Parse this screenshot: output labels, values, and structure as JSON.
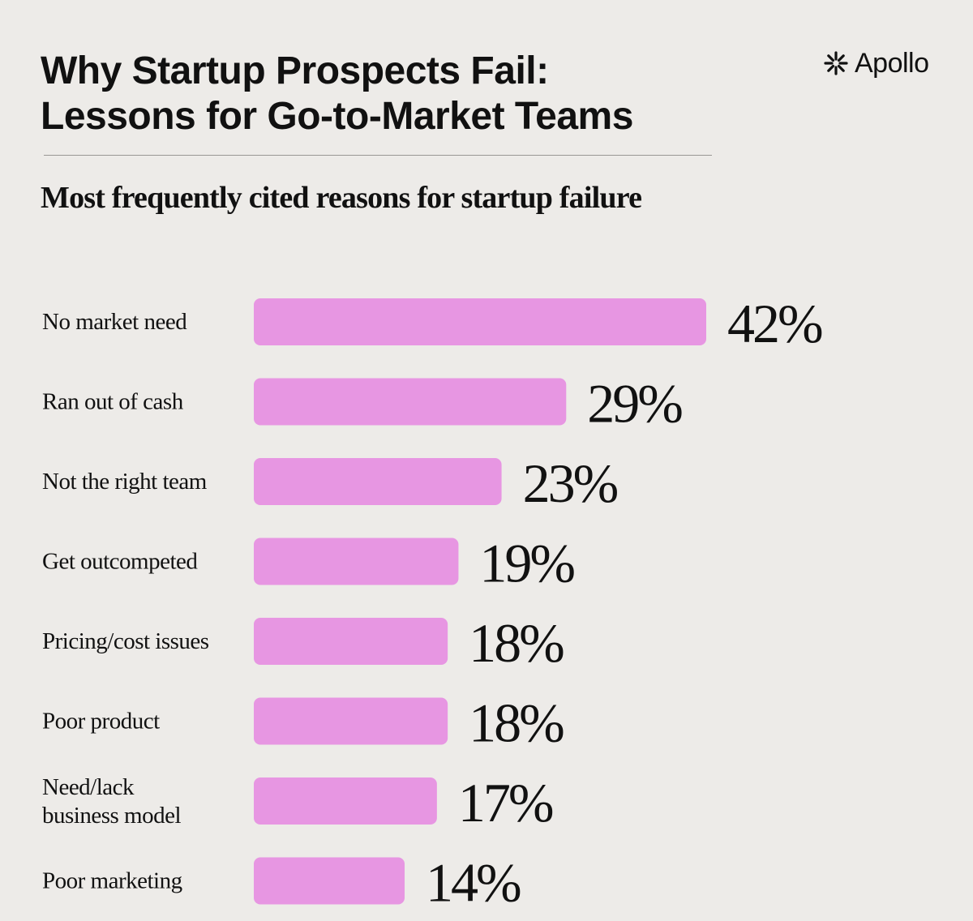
{
  "header": {
    "title_line1": "Why Startup Prospects Fail:",
    "title_line2": "Lessons for Go-to-Market Teams",
    "brand": "Apollo",
    "brand_icon": "asterisk-icon"
  },
  "chart_data": {
    "type": "bar",
    "orientation": "horizontal",
    "title": "Most frequently cited reasons for startup failure",
    "categories": [
      "No market need",
      "Ran out of cash",
      "Not the right team",
      "Get outcompeted",
      "Pricing/cost issues",
      "Poor product",
      "Need/lack business model",
      "Poor marketing"
    ],
    "values": [
      42,
      29,
      23,
      19,
      18,
      18,
      17,
      14
    ],
    "value_labels": [
      "42%",
      "29%",
      "23%",
      "19%",
      "18%",
      "18%",
      "17%",
      "14%"
    ],
    "unit": "%",
    "xlim": [
      0,
      42
    ],
    "grid": false,
    "legend": "none",
    "bar_color": "#e796e2"
  }
}
